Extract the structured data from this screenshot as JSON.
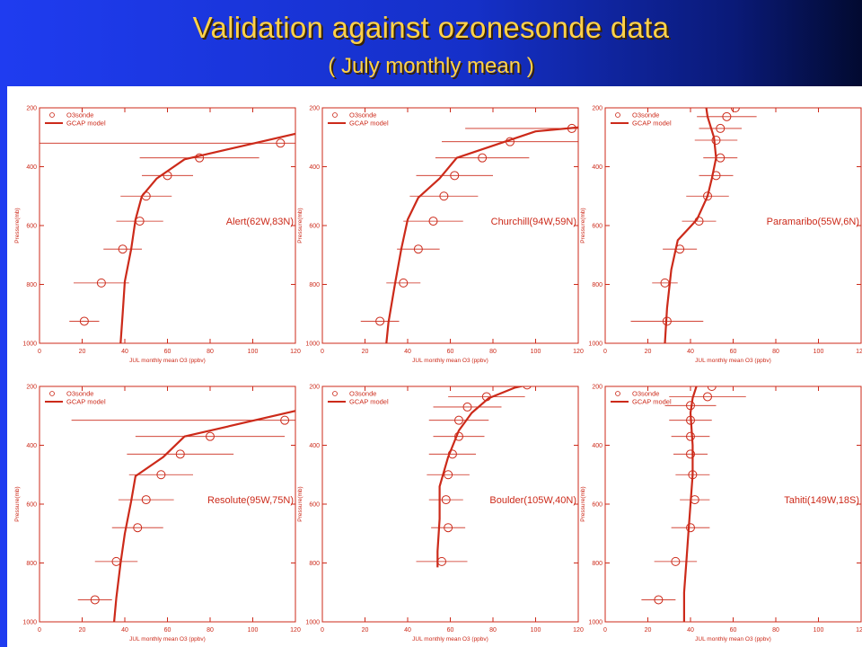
{
  "title": "Validation against ozonesonde data",
  "subtitle": "( July monthly mean )",
  "colors": {
    "plot": "#cc2a1a",
    "title": "#ffd24a"
  },
  "chart_data": [
    {
      "type": "scatter",
      "station": "Alert(62W,83N)",
      "xlabel": "JUL monthly mean O3 (ppbv)",
      "ylabel": "Pressure(mb)",
      "xlim": [
        0,
        120
      ],
      "ylim": [
        1000,
        200
      ],
      "yreversed": true,
      "xticks": [
        0,
        20,
        40,
        60,
        80,
        100,
        120
      ],
      "yticks": [
        200,
        400,
        600,
        800,
        1000
      ],
      "legend": [
        "O3sonde",
        "GCAP model"
      ],
      "legend_position": "top-left",
      "series": [
        {
          "name": "O3sonde",
          "points": [
            [
              113,
              320,
              145
            ],
            [
              75,
              370,
              28
            ],
            [
              60,
              430,
              12
            ],
            [
              50,
              500,
              12
            ],
            [
              47,
              585,
              11
            ],
            [
              39,
              680,
              9
            ],
            [
              29,
              795,
              13
            ],
            [
              21,
              925,
              7
            ]
          ]
        },
        {
          "name": "GCAP model",
          "points": [
            [
              122,
              285
            ],
            [
              68,
              375
            ],
            [
              55,
              440
            ],
            [
              48,
              500
            ],
            [
              45,
              580
            ],
            [
              43,
              680
            ],
            [
              40,
              790
            ],
            [
              39,
              900
            ],
            [
              38,
              1000
            ]
          ]
        }
      ]
    },
    {
      "type": "scatter",
      "station": "Churchill(94W,59N)",
      "xlabel": "JUL monthly mean O3 (ppbv)",
      "ylabel": "Pressure(mb)",
      "xlim": [
        0,
        120
      ],
      "ylim": [
        1000,
        200
      ],
      "yreversed": true,
      "xticks": [
        0,
        20,
        40,
        60,
        80,
        100,
        120
      ],
      "yticks": [
        200,
        400,
        600,
        800,
        1000
      ],
      "legend": [
        "O3sonde",
        "GCAP model"
      ],
      "legend_position": "top-left",
      "series": [
        {
          "name": "O3sonde",
          "points": [
            [
              117,
              270,
              50
            ],
            [
              88,
              315,
              32
            ],
            [
              75,
              370,
              22
            ],
            [
              62,
              430,
              18
            ],
            [
              57,
              500,
              16
            ],
            [
              52,
              585,
              14
            ],
            [
              45,
              680,
              10
            ],
            [
              38,
              795,
              8
            ],
            [
              27,
              925,
              9
            ]
          ]
        },
        {
          "name": "GCAP model",
          "points": [
            [
              122,
              265
            ],
            [
              100,
              280
            ],
            [
              63,
              370
            ],
            [
              55,
              440
            ],
            [
              45,
              505
            ],
            [
              40,
              580
            ],
            [
              37,
              680
            ],
            [
              34,
              800
            ],
            [
              31,
              930
            ],
            [
              30,
              1000
            ]
          ]
        }
      ]
    },
    {
      "type": "scatter",
      "station": "Paramaribo(55W,6N)",
      "xlabel": "JUL monthly mean O3 (ppbv)",
      "ylabel": "Pressure(mb)",
      "xlim": [
        0,
        120
      ],
      "ylim": [
        1000,
        200
      ],
      "yreversed": true,
      "xticks": [
        0,
        20,
        40,
        60,
        80,
        100,
        120
      ],
      "yticks": [
        200,
        400,
        600,
        800,
        1000
      ],
      "legend": [
        "O3sonde",
        "GCAP model"
      ],
      "legend_position": "top-left",
      "series": [
        {
          "name": "O3sonde",
          "points": [
            [
              70,
              170,
              20
            ],
            [
              61,
              200,
              14
            ],
            [
              57,
              230,
              14
            ],
            [
              54,
              270,
              10
            ],
            [
              52,
              310,
              10
            ],
            [
              54,
              370,
              8
            ],
            [
              52,
              430,
              8
            ],
            [
              48,
              500,
              10
            ],
            [
              44,
              585,
              8
            ],
            [
              35,
              680,
              8
            ],
            [
              28,
              795,
              6
            ],
            [
              29,
              925,
              17
            ]
          ]
        },
        {
          "name": "GCAP model",
          "points": [
            [
              47,
              180
            ],
            [
              48,
              230
            ],
            [
              51,
              300
            ],
            [
              52,
              370
            ],
            [
              50,
              440
            ],
            [
              48,
              500
            ],
            [
              43,
              580
            ],
            [
              34,
              650
            ],
            [
              31,
              750
            ],
            [
              29,
              880
            ],
            [
              28,
              1000
            ]
          ]
        }
      ]
    },
    {
      "type": "scatter",
      "station": "Resolute(95W,75N)",
      "xlabel": "JUL monthly mean O3 (ppbv)",
      "ylabel": "Pressure(mb)",
      "xlim": [
        0,
        120
      ],
      "ylim": [
        1000,
        200
      ],
      "yreversed": true,
      "xticks": [
        0,
        20,
        40,
        60,
        80,
        100,
        120
      ],
      "yticks": [
        200,
        400,
        600,
        800,
        1000
      ],
      "legend": [
        "O3sonde",
        "GCAP model"
      ],
      "legend_position": "top-left",
      "series": [
        {
          "name": "O3sonde",
          "points": [
            [
              115,
              315,
              100
            ],
            [
              80,
              370,
              35
            ],
            [
              66,
              430,
              25
            ],
            [
              57,
              500,
              15
            ],
            [
              50,
              585,
              13
            ],
            [
              46,
              680,
              12
            ],
            [
              36,
              795,
              10
            ],
            [
              26,
              925,
              8
            ]
          ]
        },
        {
          "name": "GCAP model",
          "points": [
            [
              122,
              280
            ],
            [
              68,
              370
            ],
            [
              58,
              440
            ],
            [
              45,
              505
            ],
            [
              43,
              590
            ],
            [
              40,
              700
            ],
            [
              38,
              800
            ],
            [
              36,
              920
            ],
            [
              35,
              1000
            ]
          ]
        }
      ]
    },
    {
      "type": "scatter",
      "station": "Boulder(105W,40N)",
      "xlabel": "JUL monthly mean O3 (ppbv)",
      "ylabel": "Pressure(mb)",
      "xlim": [
        0,
        120
      ],
      "ylim": [
        1000,
        200
      ],
      "yreversed": true,
      "xticks": [
        0,
        20,
        40,
        60,
        80,
        100,
        120
      ],
      "yticks": [
        200,
        400,
        600,
        800,
        1000
      ],
      "legend": [
        "O3sonde",
        "GCAP model"
      ],
      "legend_position": "top-left",
      "series": [
        {
          "name": "O3sonde",
          "points": [
            [
              118,
              170,
              15
            ],
            [
              96,
              195,
              20
            ],
            [
              77,
              235,
              18
            ],
            [
              68,
              270,
              16
            ],
            [
              64,
              315,
              14
            ],
            [
              64,
              370,
              12
            ],
            [
              61,
              430,
              11
            ],
            [
              59,
              500,
              10
            ],
            [
              58,
              585,
              8
            ],
            [
              59,
              680,
              8
            ],
            [
              56,
              795,
              12
            ]
          ]
        },
        {
          "name": "GCAP model",
          "points": [
            [
              108,
              175
            ],
            [
              90,
              205
            ],
            [
              78,
              240
            ],
            [
              70,
              290
            ],
            [
              64,
              350
            ],
            [
              59,
              440
            ],
            [
              55,
              540
            ],
            [
              55,
              650
            ],
            [
              54,
              760
            ],
            [
              54,
              815
            ]
          ]
        }
      ]
    },
    {
      "type": "scatter",
      "station": "Tahiti(149W,18S)",
      "xlabel": "JUL monthly mean O3 (ppbv)",
      "ylabel": "Pressure(mb)",
      "xlim": [
        0,
        120
      ],
      "ylim": [
        1000,
        200
      ],
      "yreversed": true,
      "xticks": [
        0,
        20,
        40,
        60,
        80,
        100,
        120
      ],
      "yticks": [
        200,
        400,
        600,
        800,
        1000
      ],
      "legend": [
        "O3sonde",
        "GCAP model"
      ],
      "legend_position": "top-left",
      "series": [
        {
          "name": "O3sonde",
          "points": [
            [
              55,
              170,
              20
            ],
            [
              50,
              200,
              22
            ],
            [
              48,
              235,
              18
            ],
            [
              40,
              265,
              12
            ],
            [
              40,
              315,
              10
            ],
            [
              40,
              370,
              9
            ],
            [
              40,
              430,
              8
            ],
            [
              41,
              500,
              8
            ],
            [
              42,
              585,
              7
            ],
            [
              40,
              680,
              9
            ],
            [
              33,
              795,
              10
            ],
            [
              25,
              925,
              8
            ]
          ]
        },
        {
          "name": "GCAP model",
          "points": [
            [
              43,
              195
            ],
            [
              41,
              240
            ],
            [
              40,
              290
            ],
            [
              41,
              400
            ],
            [
              41,
              500
            ],
            [
              40,
              600
            ],
            [
              39,
              700
            ],
            [
              38,
              800
            ],
            [
              37,
              900
            ],
            [
              37,
              1000
            ]
          ]
        }
      ]
    }
  ]
}
